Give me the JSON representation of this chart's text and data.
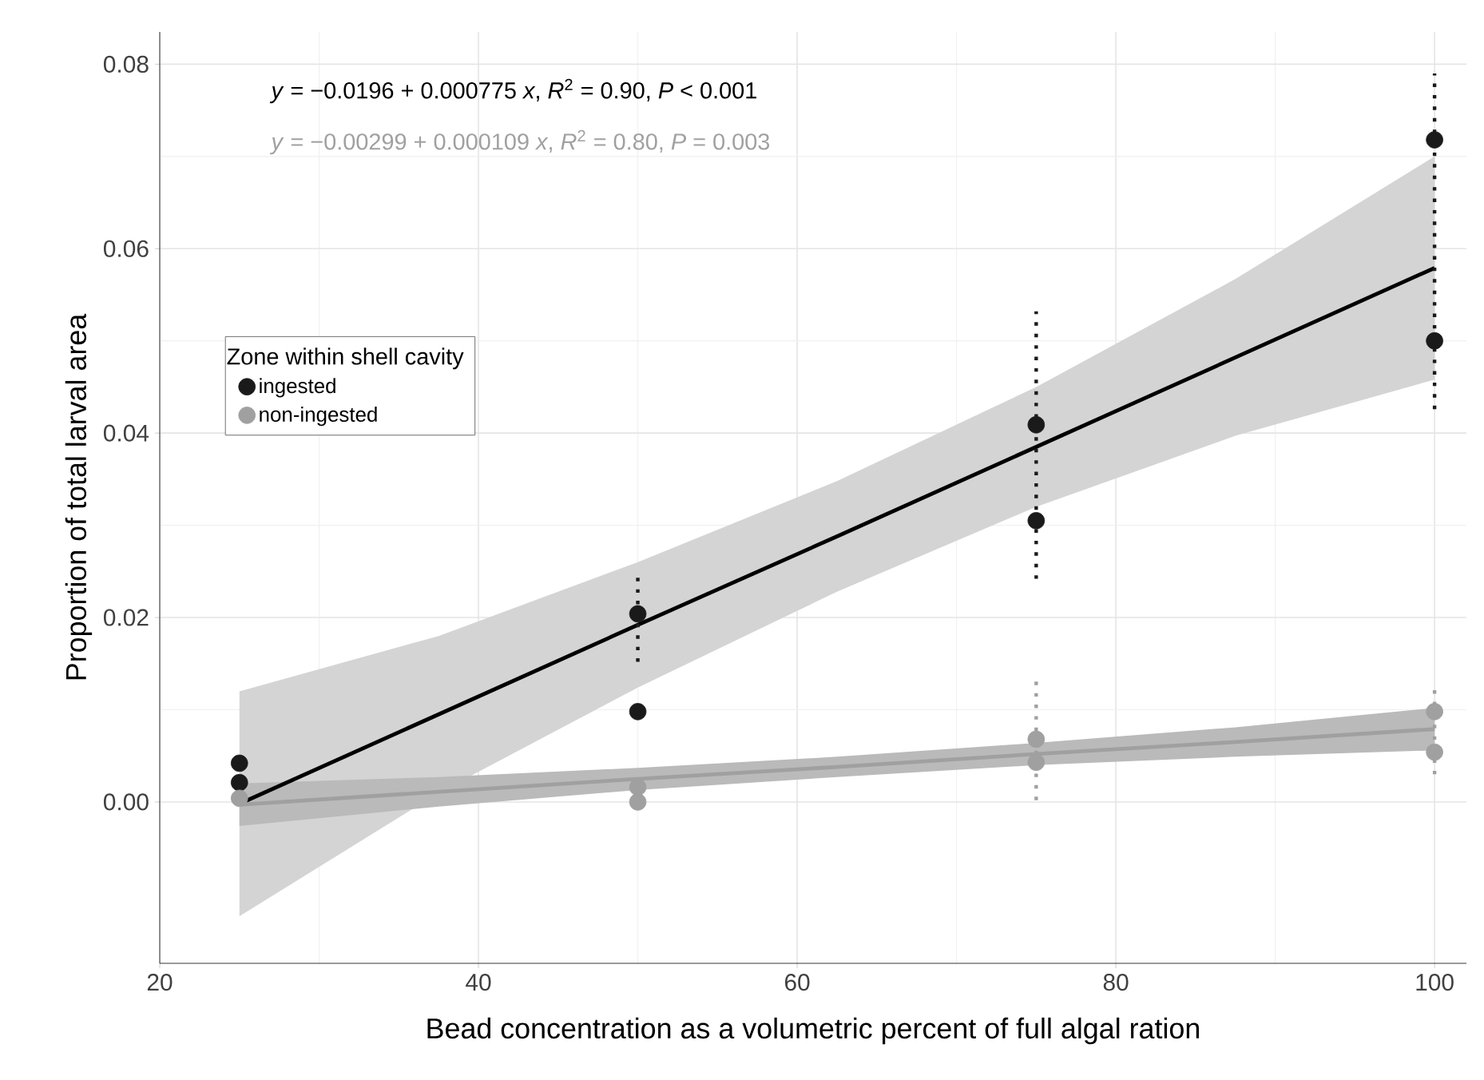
{
  "chart_data": {
    "type": "scatter",
    "xlabel": "Bead concentration as a volumetric percent of full algal ration",
    "ylabel": "Proportion of total larval area",
    "legend_title": "Zone within shell cavity",
    "annotations": [
      "*y* = −0.0196 + 0.000775 *x*, *R*$^{2}$ = 0.90, *P* < 0.001",
      "*y* = −0.00299 + 0.000109 *x*, *R*$^{2}$ = 0.80, *P* = 0.003"
    ],
    "xlim": [
      20,
      102
    ],
    "xticks": [
      20,
      40,
      60,
      80,
      100
    ],
    "ylim": [
      -0.0175,
      0.0835
    ],
    "yticks": [
      {
        "value": 0,
        "label": "0.00"
      },
      {
        "value": 0.02,
        "label": "0.02"
      },
      {
        "value": 0.04,
        "label": "0.04"
      },
      {
        "value": 0.06,
        "label": "0.06"
      },
      {
        "value": 0.08,
        "label": "0.08"
      }
    ],
    "grid": true,
    "legend": "left",
    "marker": "circle",
    "series": [
      {
        "type": "line",
        "marker": "none",
        "color": "#000000",
        "x": [
          25,
          37.5,
          50,
          62.5,
          75,
          87.5,
          100
        ],
        "values": [
          -0.0002,
          0.0095,
          0.0192,
          0.0288,
          0.0385,
          0.0482,
          0.0579
        ],
        "lower": [
          -0.0124,
          0.001,
          0.0124,
          0.0228,
          0.032,
          0.0397,
          0.0458
        ],
        "upper": [
          0.012,
          0.018,
          0.026,
          0.0348,
          0.045,
          0.0567,
          0.07
        ]
      },
      {
        "type": "line",
        "marker": "none",
        "color": "#a0a0a0",
        "x": [
          25,
          37.5,
          50,
          62.5,
          75,
          87.5,
          100
        ],
        "values": [
          -0.0003,
          0.0011,
          0.0025,
          0.0038,
          0.0052,
          0.0065,
          0.0079
        ],
        "lower": [
          -0.0026,
          -0.0005,
          0.0013,
          0.0027,
          0.004,
          0.0049,
          0.0056
        ],
        "upper": [
          0.002,
          0.0027,
          0.0037,
          0.0049,
          0.0064,
          0.0081,
          0.0102
        ]
      },
      {
        "name": "ingested",
        "color": "#1a1a1a",
        "x": [
          25,
          25,
          50,
          50,
          75,
          75,
          100,
          100
        ],
        "values": [
          0.0042,
          0.0021,
          0.0204,
          0.0098,
          0.0409,
          0.0305,
          0.0718,
          0.05
        ],
        "errors": [
          null,
          null,
          [
            0.0152,
            0.0244
          ],
          null,
          [
            0.0242,
            0.0532
          ],
          null,
          [
            0.0426,
            0.079
          ],
          null
        ]
      },
      {
        "name": "non-ingested",
        "color": "#a0a0a0",
        "x": [
          25,
          50,
          50,
          75,
          75,
          100,
          100
        ],
        "values": [
          0.0004,
          0.0016,
          0,
          0.0068,
          0.0043,
          0.0098,
          0.0054
        ],
        "errors": [
          null,
          null,
          null,
          [
            0.0002,
            0.0135
          ],
          null,
          [
            0.003,
            0.0127
          ],
          null
        ]
      }
    ]
  }
}
